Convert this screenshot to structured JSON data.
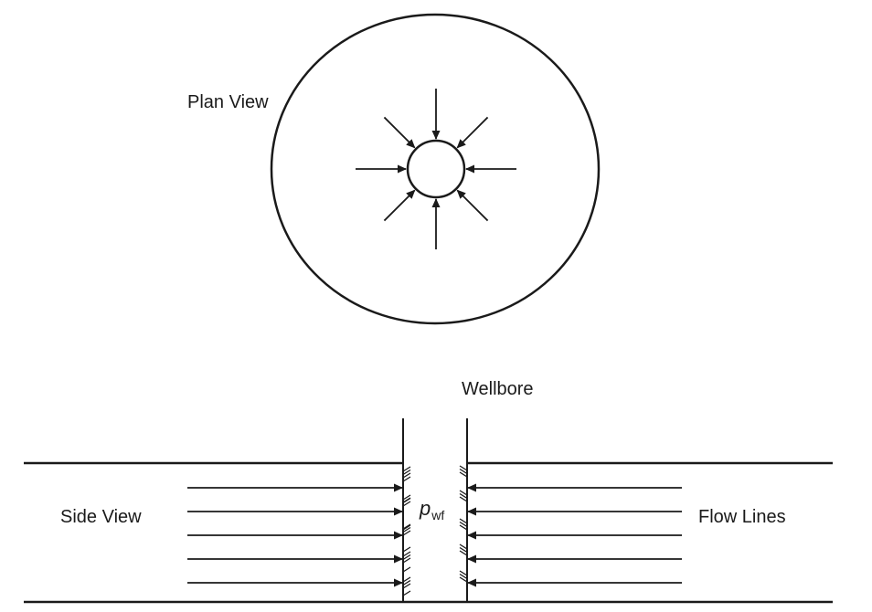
{
  "labels": {
    "plan_view": "Plan View",
    "wellbore": "Wellbore",
    "side_view": "Side View",
    "flow_lines": "Flow Lines",
    "pressure_symbol": "p",
    "pressure_subscript": "wf"
  },
  "plan_view": {
    "radial_arrow_count": 8
  },
  "side_view": {
    "flow_lines_per_side": 5
  }
}
